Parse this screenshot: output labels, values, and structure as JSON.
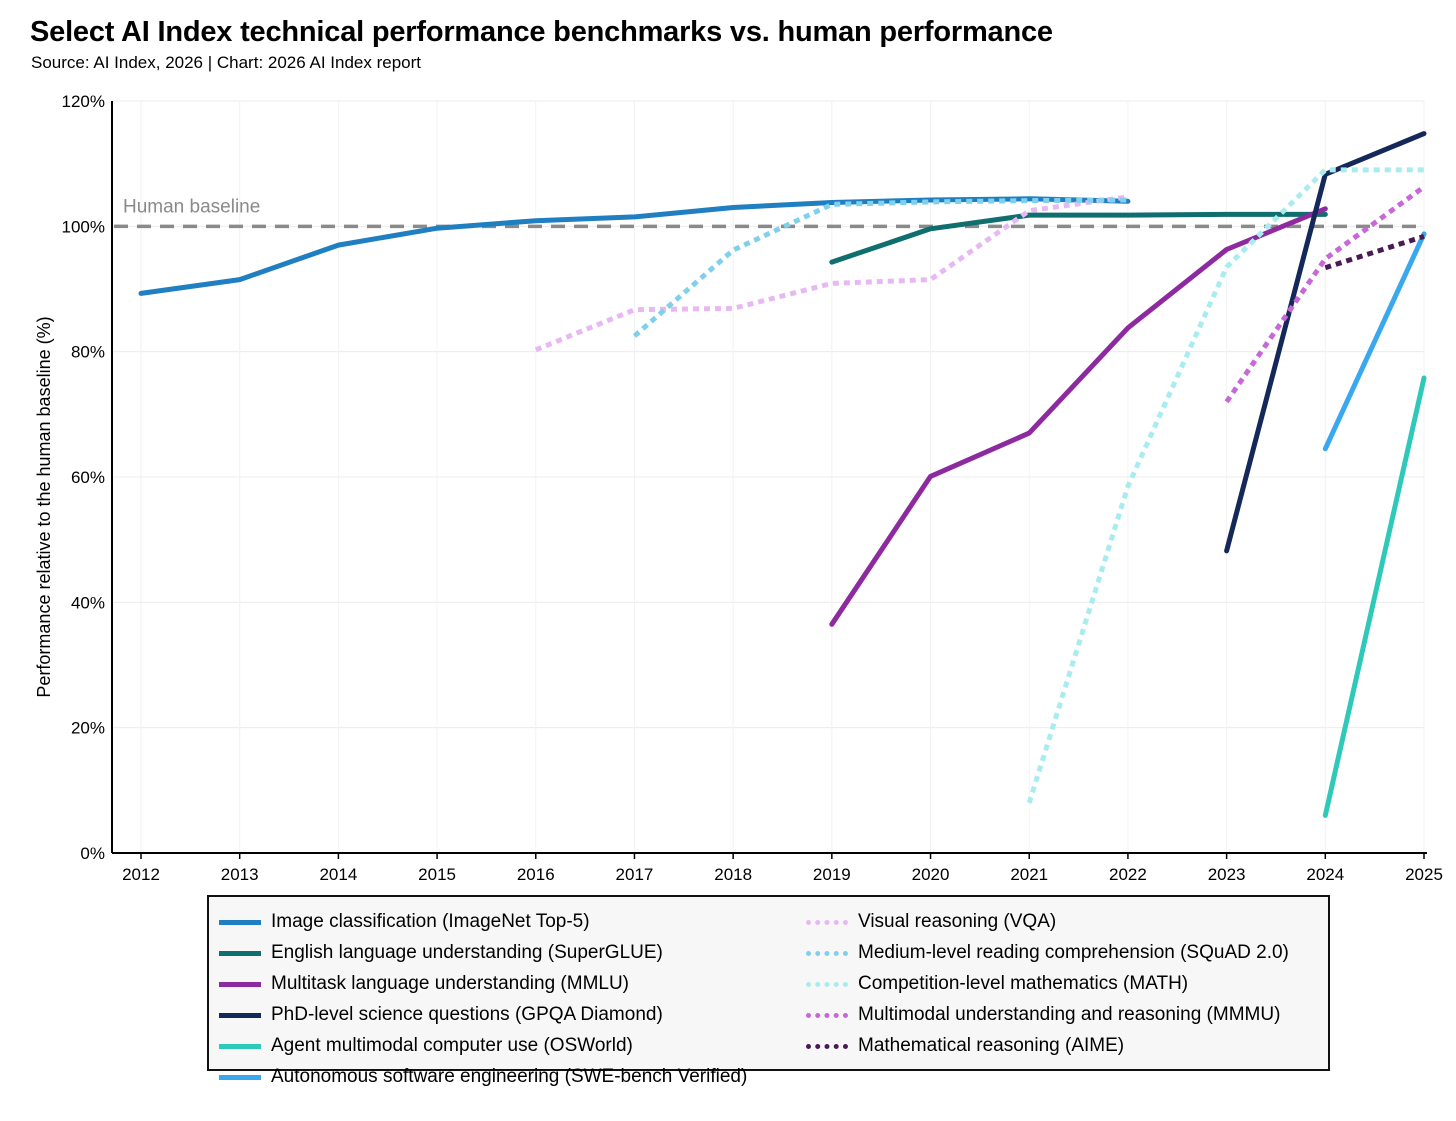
{
  "title": "Select AI Index technical performance benchmarks vs. human performance",
  "subtitle": "Source: AI Index, 2026 | Chart: 2026 AI Index report",
  "chart_data": {
    "type": "line",
    "ylabel": "Performance relative to the human baseline (%)",
    "xlabel": "",
    "xlim": [
      2012,
      2025
    ],
    "ylim": [
      0,
      120
    ],
    "x_ticks": [
      "2012",
      "2013",
      "2014",
      "2015",
      "2016",
      "2017",
      "2018",
      "2019",
      "2020",
      "2021",
      "2022",
      "2023",
      "2024",
      "2025"
    ],
    "y_ticks": [
      "0%",
      "20%",
      "40%",
      "60%",
      "80%",
      "100%",
      "120%"
    ],
    "y_tick_values": [
      0,
      20,
      40,
      60,
      80,
      100,
      120
    ],
    "grid": true,
    "baseline": {
      "label": "Human baseline",
      "value": 100,
      "color": "#8a8a8a"
    },
    "legend_placement": "bottom",
    "series": [
      {
        "name": "Image classification (ImageNet Top-5)",
        "color": "#1f7fc0",
        "dashed": false,
        "points": [
          [
            2012,
            89.3
          ],
          [
            2013,
            91.5
          ],
          [
            2014,
            97
          ],
          [
            2015,
            99.7
          ],
          [
            2016,
            100.9
          ],
          [
            2017,
            101.5
          ],
          [
            2018,
            103
          ],
          [
            2019,
            103.8
          ],
          [
            2020,
            104.2
          ],
          [
            2021,
            104.4
          ],
          [
            2022,
            104
          ]
        ]
      },
      {
        "name": "English language understanding (SuperGLUE)",
        "color": "#0f6e6e",
        "dashed": false,
        "points": [
          [
            2019,
            94.3
          ],
          [
            2020,
            99.6
          ],
          [
            2021,
            101.8
          ],
          [
            2022,
            101.8
          ],
          [
            2023,
            101.9
          ],
          [
            2024,
            101.9
          ]
        ]
      },
      {
        "name": "Multitask language understanding (MMLU)",
        "color": "#8e2aa0",
        "dashed": false,
        "points": [
          [
            2019,
            36.5
          ],
          [
            2020,
            60.1
          ],
          [
            2021,
            67
          ],
          [
            2022,
            83.8
          ],
          [
            2023,
            96.3
          ],
          [
            2024,
            102.8
          ]
        ]
      },
      {
        "name": "PhD-level science questions (GPQA Diamond)",
        "color": "#15285a",
        "dashed": false,
        "points": [
          [
            2023,
            48.2
          ],
          [
            2024,
            108.3
          ],
          [
            2025,
            114.8
          ]
        ]
      },
      {
        "name": "Agent multimodal computer use (OSWorld)",
        "color": "#2ec9b8",
        "dashed": false,
        "points": [
          [
            2024,
            6
          ],
          [
            2025,
            75.8
          ]
        ]
      },
      {
        "name": "Autonomous software engineering (SWE-bench Verified)",
        "color": "#3aa8ee",
        "dashed": false,
        "points": [
          [
            2024,
            64.5
          ],
          [
            2025,
            98.8
          ]
        ]
      },
      {
        "name": "Visual reasoning (VQA)",
        "color": "#e8b8f2",
        "dashed": true,
        "points": [
          [
            2016,
            80.3
          ],
          [
            2017,
            86.7
          ],
          [
            2018,
            86.9
          ],
          [
            2019,
            90.9
          ],
          [
            2020,
            91.5
          ],
          [
            2021,
            102.5
          ],
          [
            2022,
            104.7
          ]
        ]
      },
      {
        "name": "Medium-level reading comprehension (SQuAD 2.0)",
        "color": "#7fd0ec",
        "dashed": true,
        "points": [
          [
            2017,
            82.5
          ],
          [
            2018,
            96.2
          ],
          [
            2019,
            103.5
          ],
          [
            2020,
            103.9
          ],
          [
            2021,
            104.1
          ],
          [
            2022,
            104.2
          ]
        ]
      },
      {
        "name": "Competition-level mathematics (MATH)",
        "color": "#a9ecf0",
        "dashed": true,
        "points": [
          [
            2021,
            8
          ],
          [
            2022,
            58.5
          ],
          [
            2023,
            93.5
          ],
          [
            2024,
            109
          ],
          [
            2025,
            109
          ]
        ]
      },
      {
        "name": "Multimodal understanding and reasoning (MMMU)",
        "color": "#c867d8",
        "dashed": true,
        "points": [
          [
            2023,
            72
          ],
          [
            2024,
            94.8
          ],
          [
            2025,
            106.3
          ]
        ]
      },
      {
        "name": "Mathematical reasoning (AIME)",
        "color": "#4a1a55",
        "dashed": true,
        "points": [
          [
            2024,
            93.4
          ],
          [
            2025,
            98.4
          ]
        ]
      }
    ]
  }
}
